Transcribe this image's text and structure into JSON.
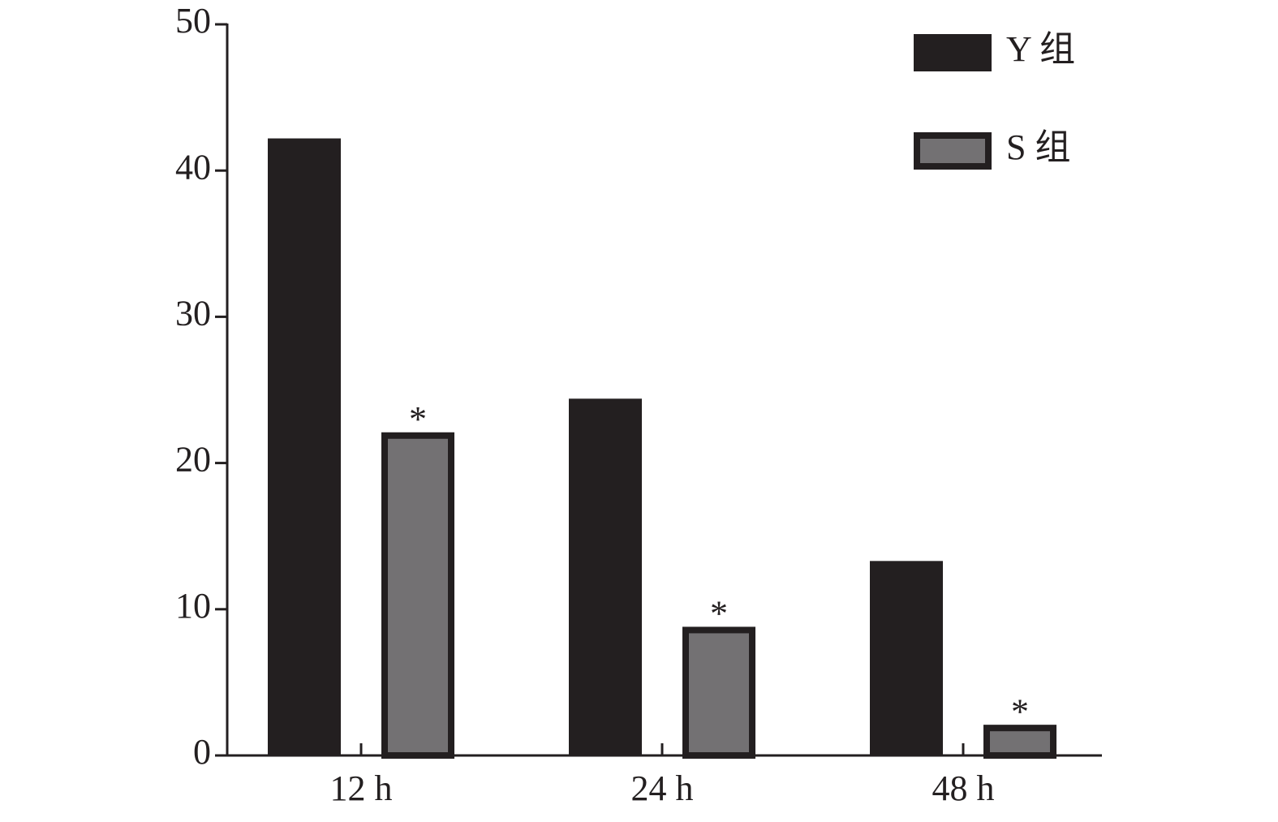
{
  "chart_data": {
    "type": "bar",
    "categories": [
      "12 h",
      "24 h",
      "48 h"
    ],
    "series": [
      {
        "name": "Y 组",
        "color": "#231f20",
        "values": [
          42.2,
          24.4,
          13.3
        ]
      },
      {
        "name": "S 组",
        "color": "#737173",
        "edgecolor": "#231f20",
        "values": [
          22.1,
          8.8,
          2.1
        ],
        "significance": [
          "*",
          "*",
          "*"
        ]
      }
    ],
    "ylim": [
      0,
      50
    ],
    "yticks": [
      0,
      10,
      20,
      30,
      40,
      50
    ],
    "grid": false,
    "legend": "upper right"
  }
}
